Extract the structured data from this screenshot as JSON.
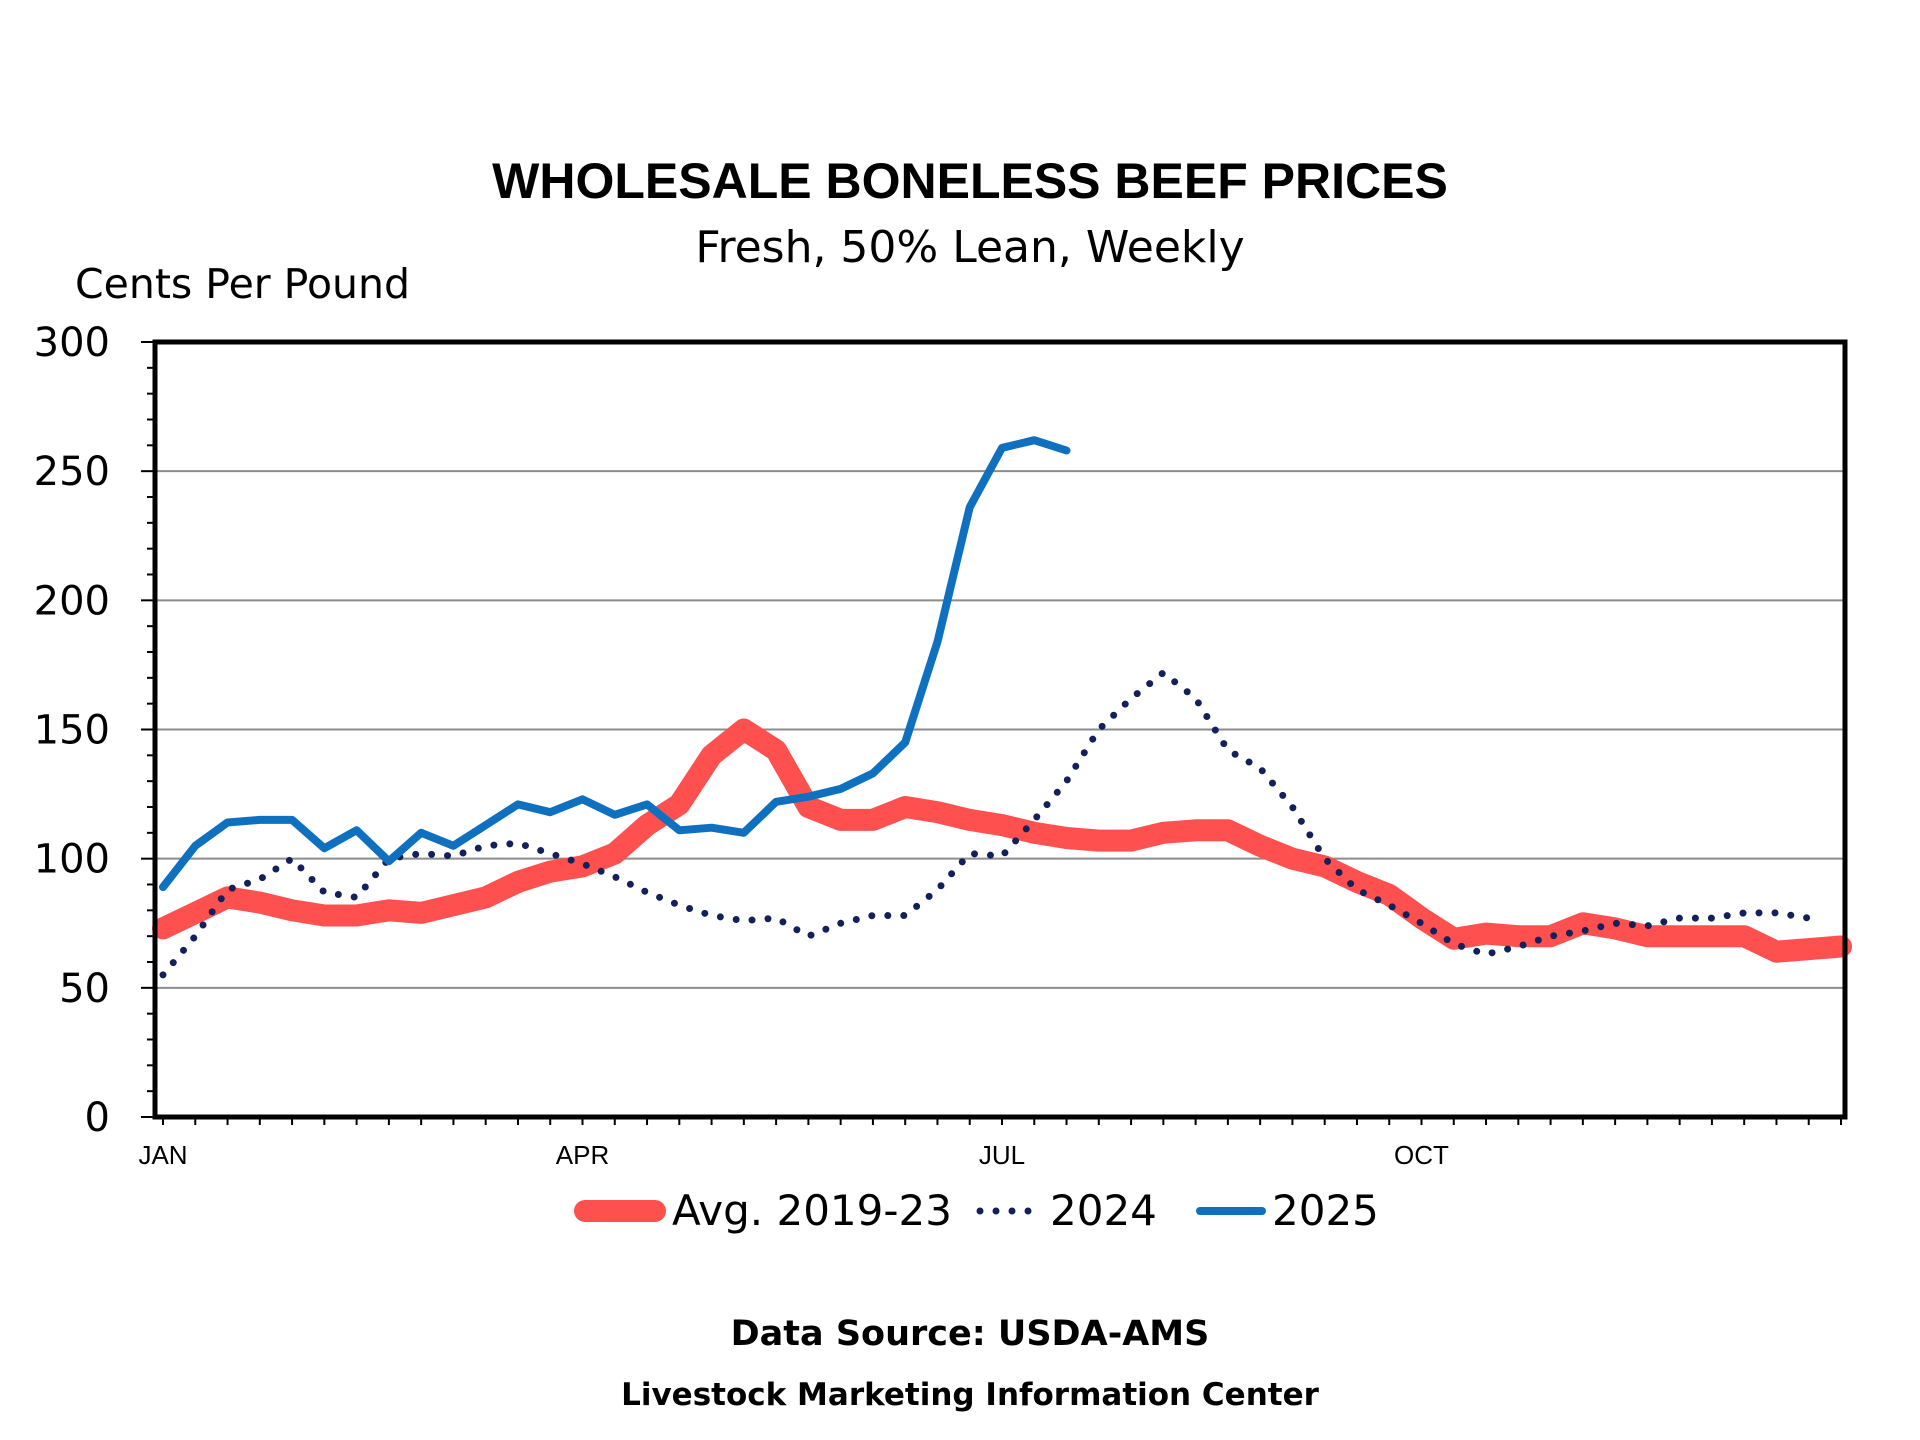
{
  "chart_data": {
    "type": "line",
    "title": "WHOLESALE BONELESS BEEF PRICES",
    "subtitle": "Fresh, 50% Lean, Weekly",
    "ylabel": "Cents Per Pound",
    "xlabel": "",
    "ylim": [
      0,
      300
    ],
    "yticks": [
      0,
      50,
      100,
      150,
      200,
      250,
      300
    ],
    "x_range": [
      1,
      53
    ],
    "x_tick_labels": [
      {
        "week": 1,
        "label": "JAN"
      },
      {
        "week": 14,
        "label": "APR"
      },
      {
        "week": 27,
        "label": "JUL"
      },
      {
        "week": 40,
        "label": "OCT"
      }
    ],
    "grid": "horizontal",
    "legend_position": "bottom",
    "series": [
      {
        "name": "Avg. 2019-23",
        "color": "#ff5050",
        "style": "thick-solid",
        "x": [
          1,
          2,
          3,
          4,
          5,
          6,
          7,
          8,
          9,
          10,
          11,
          12,
          13,
          14,
          15,
          16,
          17,
          18,
          19,
          20,
          21,
          22,
          23,
          24,
          25,
          26,
          27,
          28,
          29,
          30,
          31,
          32,
          33,
          34,
          35,
          36,
          37,
          38,
          39,
          40,
          41,
          42,
          43,
          44,
          45,
          46,
          47,
          48,
          49,
          50,
          51,
          52,
          53
        ],
        "values": [
          73,
          79,
          85,
          83,
          80,
          78,
          78,
          80,
          79,
          82,
          85,
          91,
          95,
          97,
          102,
          113,
          121,
          140,
          150,
          142,
          120,
          115,
          115,
          120,
          118,
          115,
          113,
          110,
          108,
          107,
          107,
          110,
          111,
          111,
          105,
          100,
          97,
          91,
          86,
          77,
          69,
          71,
          70,
          70,
          75,
          73,
          70,
          70,
          70,
          70,
          64,
          65,
          66
        ]
      },
      {
        "name": "2024",
        "color": "#14205a",
        "style": "dotted",
        "x": [
          1,
          2,
          3,
          4,
          5,
          6,
          7,
          8,
          9,
          10,
          11,
          12,
          13,
          14,
          15,
          16,
          17,
          18,
          19,
          20,
          21,
          22,
          23,
          24,
          25,
          26,
          27,
          28,
          29,
          30,
          31,
          32,
          33,
          34,
          35,
          36,
          37,
          38,
          39,
          40,
          41,
          42,
          43,
          44,
          45,
          46,
          47,
          48,
          49,
          50,
          51,
          52
        ],
        "values": [
          55,
          70,
          88,
          92,
          100,
          87,
          85,
          100,
          102,
          101,
          105,
          106,
          102,
          98,
          93,
          87,
          82,
          78,
          76,
          77,
          70,
          75,
          78,
          78,
          88,
          102,
          101,
          115,
          130,
          150,
          162,
          172,
          162,
          142,
          135,
          120,
          100,
          88,
          82,
          75,
          67,
          63,
          66,
          70,
          72,
          75,
          74,
          77,
          77,
          79,
          79,
          77
        ]
      },
      {
        "name": "2025",
        "color": "#0f70c0",
        "style": "solid",
        "x": [
          1,
          2,
          3,
          4,
          5,
          6,
          7,
          8,
          9,
          10,
          11,
          12,
          13,
          14,
          15,
          16,
          17,
          18,
          19,
          20,
          21,
          22,
          23,
          24,
          25,
          26,
          27,
          28,
          29
        ],
        "values": [
          89,
          105,
          114,
          115,
          115,
          104,
          111,
          99,
          110,
          105,
          113,
          121,
          118,
          123,
          117,
          121,
          111,
          112,
          110,
          122,
          124,
          127,
          133,
          145,
          184,
          236,
          259,
          262,
          258
        ]
      }
    ]
  },
  "footer": {
    "source": "Data Source:  USDA-AMS",
    "credit": "Livestock Marketing Information Center"
  }
}
